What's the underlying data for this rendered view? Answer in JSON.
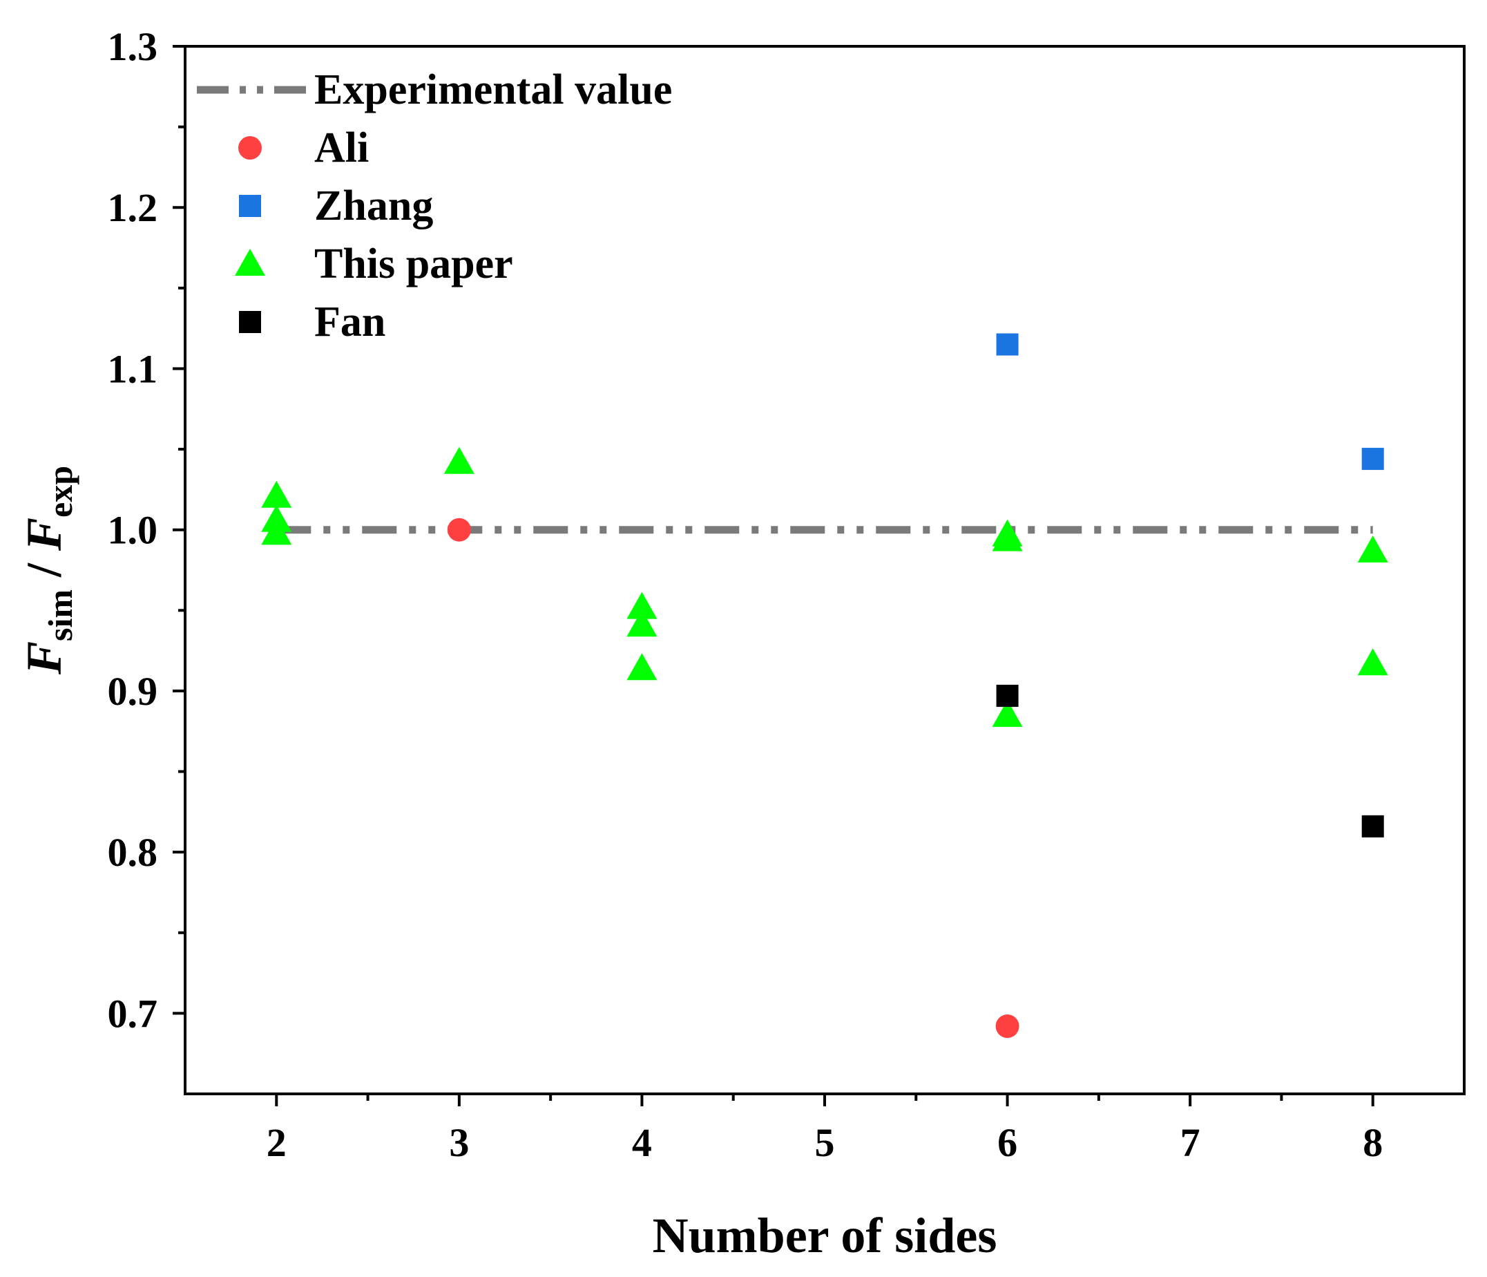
{
  "chart_data": {
    "type": "scatter",
    "xlabel": "Number of sides",
    "ylabel": {
      "main1": "F",
      "sub1": "sim",
      "sep": " / ",
      "main2": "F",
      "sub2": "exp"
    },
    "xlim": [
      1.5,
      8.5
    ],
    "ylim": [
      0.65,
      1.3
    ],
    "xticks": [
      {
        "value": 2,
        "label": "2"
      },
      {
        "value": 3,
        "label": "3"
      },
      {
        "value": 4,
        "label": "4"
      },
      {
        "value": 5,
        "label": "5"
      },
      {
        "value": 6,
        "label": "6"
      },
      {
        "value": 7,
        "label": "7"
      },
      {
        "value": 8,
        "label": "8"
      }
    ],
    "xminor": [
      2.5,
      3.5,
      4.5,
      5.5,
      6.5,
      7.5
    ],
    "yticks": [
      {
        "value": 0.7,
        "label": "0.7"
      },
      {
        "value": 0.8,
        "label": "0.8"
      },
      {
        "value": 0.9,
        "label": "0.9"
      },
      {
        "value": 1.0,
        "label": "1.0"
      },
      {
        "value": 1.1,
        "label": "1.1"
      },
      {
        "value": 1.2,
        "label": "1.2"
      },
      {
        "value": 1.3,
        "label": "1.3"
      }
    ],
    "yminor": [
      0.75,
      0.85,
      0.95,
      1.05,
      1.15,
      1.25
    ],
    "grid": false,
    "legend_position": "top-left",
    "reference_line": {
      "name": "Experimental value",
      "y": 1.0,
      "x_range": [
        2,
        8
      ],
      "color": "#7a7a7a",
      "style": "dash-dot-dot"
    },
    "series": [
      {
        "name": "Ali",
        "marker": "circle",
        "color": "#ff4040",
        "points": [
          {
            "x": 3,
            "y": 1.0
          },
          {
            "x": 6,
            "y": 0.692
          }
        ]
      },
      {
        "name": "Zhang",
        "marker": "square",
        "color": "#1a75e0",
        "points": [
          {
            "x": 6,
            "y": 1.115
          },
          {
            "x": 8,
            "y": 1.044
          }
        ]
      },
      {
        "name": "This paper",
        "marker": "triangle",
        "color": "#00ff00",
        "points": [
          {
            "x": 2,
            "y": 1.021
          },
          {
            "x": 2,
            "y": 1.006
          },
          {
            "x": 2,
            "y": 0.998
          },
          {
            "x": 3,
            "y": 1.042
          },
          {
            "x": 4,
            "y": 0.952
          },
          {
            "x": 4,
            "y": 0.941
          },
          {
            "x": 4,
            "y": 0.914
          },
          {
            "x": 6,
            "y": 0.997
          },
          {
            "x": 6,
            "y": 0.994
          },
          {
            "x": 6,
            "y": 0.885
          },
          {
            "x": 8,
            "y": 0.987
          },
          {
            "x": 8,
            "y": 0.917
          }
        ]
      },
      {
        "name": "Fan",
        "marker": "square",
        "color": "#000000",
        "points": [
          {
            "x": 6,
            "y": 0.897
          },
          {
            "x": 8,
            "y": 0.816
          }
        ]
      }
    ]
  }
}
